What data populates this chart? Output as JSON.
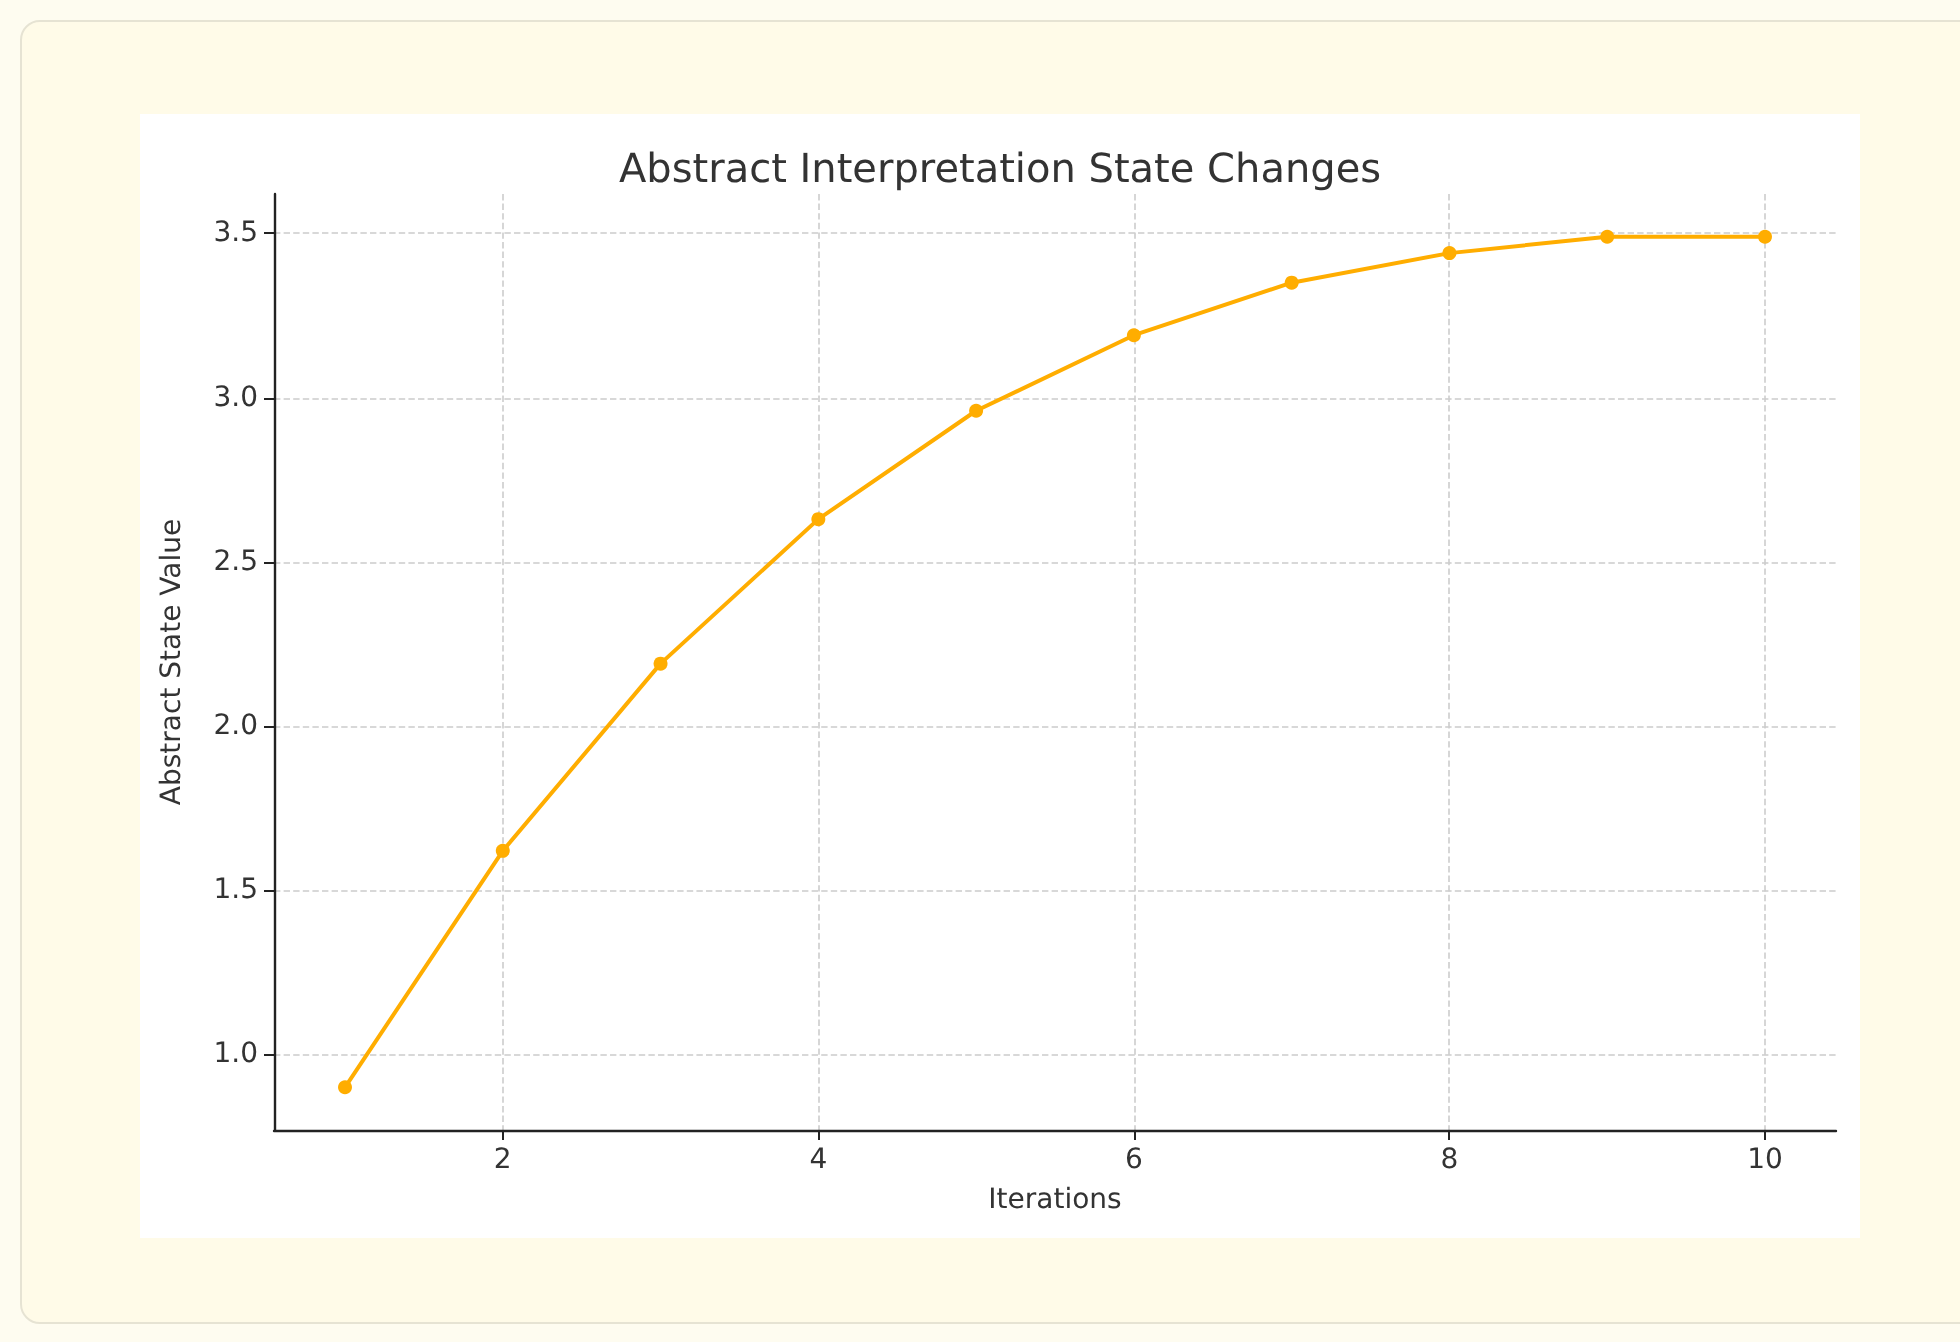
{
  "chart_data": {
    "type": "line",
    "title": "Abstract Interpretation State Changes",
    "xlabel": "Iterations",
    "ylabel": "Abstract State Value",
    "x": [
      1,
      2,
      3,
      4,
      5,
      6,
      7,
      8,
      9,
      10
    ],
    "series": [
      {
        "color": "#ffad00",
        "values": [
          0.9,
          1.62,
          2.19,
          2.63,
          2.96,
          3.19,
          3.35,
          3.44,
          3.49,
          3.49
        ]
      }
    ],
    "xlim": [
      0.55,
      10.45
    ],
    "xticks": [
      2,
      4,
      6,
      8,
      10
    ],
    "ylim": [
      0.77,
      3.62
    ],
    "yticks": [
      {
        "value": 1,
        "label": "1.0"
      },
      1.5,
      {
        "value": 2,
        "label": "2.0"
      },
      2.5,
      {
        "value": 3,
        "label": "3.0"
      },
      3.5
    ],
    "grid": true,
    "marker": "circle",
    "line_style": "solid"
  }
}
